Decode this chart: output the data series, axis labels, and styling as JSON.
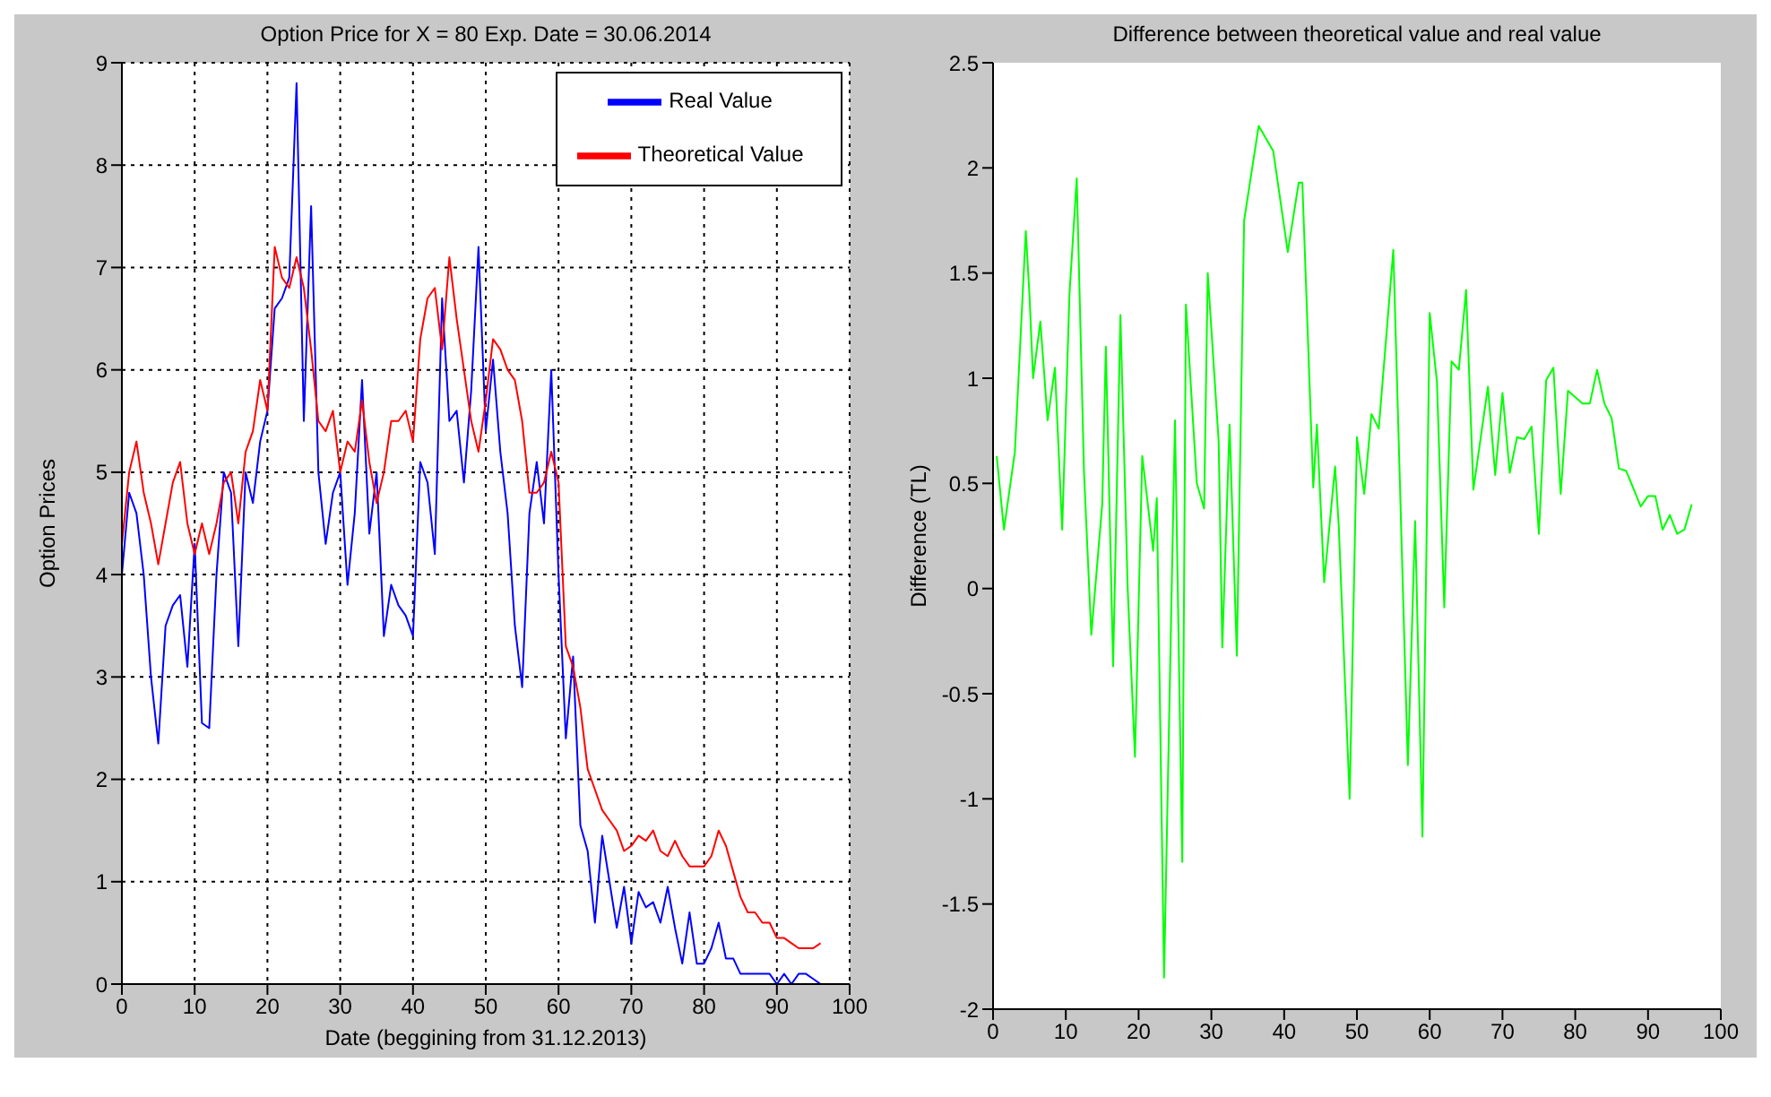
{
  "chart_data": [
    {
      "type": "line",
      "title": "Option Price for X = 80 Exp. Date = 30.06.2014",
      "xlabel": "Date (beggining from 31.12.2013)",
      "ylabel": "Option Prices",
      "x": [
        0,
        1,
        2,
        3,
        4,
        5,
        6,
        7,
        8,
        9,
        10,
        11,
        12,
        13,
        14,
        15,
        16,
        17,
        18,
        19,
        20,
        21,
        22,
        23,
        24,
        25,
        26,
        27,
        28,
        29,
        30,
        31,
        32,
        33,
        34,
        35,
        36,
        37,
        38,
        39,
        40,
        41,
        42,
        43,
        44,
        45,
        46,
        47,
        48,
        49,
        50,
        51,
        52,
        53,
        54,
        55,
        56,
        57,
        58,
        59,
        60,
        61,
        62,
        63,
        64,
        65,
        66,
        67,
        68,
        69,
        70,
        71,
        72,
        73,
        74,
        75,
        76,
        77,
        78,
        79,
        80,
        81,
        82,
        83,
        84,
        85,
        86,
        87,
        88,
        89,
        90,
        91,
        92,
        93,
        94,
        95,
        96
      ],
      "series": [
        {
          "name": "Real Value",
          "color": "#0000ff",
          "values": [
            4.0,
            4.8,
            4.6,
            4.0,
            3.0,
            2.35,
            3.5,
            3.7,
            3.8,
            3.1,
            4.3,
            2.55,
            2.5,
            4.0,
            5.0,
            4.8,
            3.3,
            5.0,
            4.7,
            5.3,
            5.6,
            6.6,
            6.7,
            6.9,
            8.8,
            5.5,
            7.6,
            5.0,
            4.3,
            4.8,
            5.0,
            3.9,
            4.6,
            5.9,
            4.4,
            5.0,
            3.4,
            3.9,
            3.7,
            3.6,
            3.4,
            5.1,
            4.9,
            4.2,
            6.7,
            5.5,
            5.6,
            4.9,
            5.8,
            7.2,
            5.4,
            6.1,
            5.2,
            4.6,
            3.5,
            2.9,
            4.6,
            5.1,
            4.5,
            6.0,
            4.0,
            2.4,
            3.2,
            1.55,
            1.3,
            0.6,
            1.45,
            1.0,
            0.55,
            0.95,
            0.4,
            0.9,
            0.75,
            0.8,
            0.6,
            0.95,
            0.55,
            0.2,
            0.7,
            0.2,
            0.2,
            0.35,
            0.6,
            0.25,
            0.25,
            0.1,
            0.1,
            0.1,
            0.1,
            0.1,
            0.0,
            0.1,
            0.0,
            0.1,
            0.1,
            0.05,
            0.0
          ]
        },
        {
          "name": "Theoretical Value",
          "color": "#ff0000",
          "values": [
            4.3,
            5.0,
            5.3,
            4.8,
            4.5,
            4.1,
            4.5,
            4.9,
            5.1,
            4.5,
            4.2,
            4.5,
            4.2,
            4.5,
            4.9,
            5.0,
            4.5,
            5.2,
            5.4,
            5.9,
            5.6,
            7.2,
            6.9,
            6.8,
            7.1,
            6.8,
            6.2,
            5.5,
            5.4,
            5.6,
            5.0,
            5.3,
            5.2,
            5.7,
            5.1,
            4.7,
            5.0,
            5.5,
            5.5,
            5.6,
            5.3,
            6.3,
            6.7,
            6.8,
            6.2,
            7.1,
            6.5,
            6.0,
            5.5,
            5.2,
            5.7,
            6.3,
            6.2,
            6.0,
            5.9,
            5.5,
            4.8,
            4.8,
            4.9,
            5.2,
            4.9,
            3.3,
            3.1,
            2.7,
            2.1,
            1.9,
            1.7,
            1.6,
            1.5,
            1.3,
            1.35,
            1.45,
            1.4,
            1.5,
            1.3,
            1.25,
            1.4,
            1.25,
            1.15,
            1.15,
            1.15,
            1.25,
            1.5,
            1.35,
            1.1,
            0.85,
            0.7,
            0.7,
            0.6,
            0.6,
            0.45,
            0.45,
            0.4,
            0.35,
            0.35,
            0.35,
            0.4
          ]
        }
      ],
      "xlim": [
        0,
        100
      ],
      "xticks": [
        0,
        10,
        20,
        30,
        40,
        50,
        60,
        70,
        80,
        90,
        100
      ],
      "ylim": [
        0,
        9
      ],
      "yticks": [
        0,
        1,
        2,
        3,
        4,
        5,
        6,
        7,
        8,
        9
      ],
      "grid": true,
      "legend": "top right",
      "marker": "none",
      "line_style": "solid"
    },
    {
      "type": "line",
      "title": "Difference between theoretical value and real value",
      "ylabel": "Difference (TL)",
      "x": [
        0.5,
        1.5,
        3,
        3.5,
        4.5,
        5,
        5.5,
        6.5,
        7.5,
        8.5,
        9.5,
        10.5,
        11.5,
        12.5,
        13.5,
        15,
        15.5,
        16.5,
        17.5,
        18.5,
        19.5,
        20.5,
        22,
        22.5,
        23.5,
        25,
        26,
        26.5,
        28,
        29,
        29.5,
        31,
        31.5,
        32.5,
        33.5,
        34.5,
        36.5,
        38.5,
        40.5,
        42,
        42.5,
        44,
        44.5,
        45.5,
        47,
        47.5,
        49,
        50,
        51,
        52,
        53,
        55,
        57,
        58,
        59,
        60,
        61,
        62,
        63,
        64,
        65,
        66,
        68,
        69,
        70,
        71,
        72,
        73,
        74,
        75,
        76,
        77,
        78,
        79,
        81,
        82,
        83,
        84,
        85,
        86,
        87,
        89,
        90,
        91,
        92,
        93,
        94,
        95,
        96
      ],
      "series": [
        {
          "color": "#00ff00",
          "values": [
            0.63,
            0.28,
            0.65,
            1.0,
            1.7,
            1.4,
            1.0,
            1.27,
            0.8,
            1.05,
            0.28,
            1.4,
            1.95,
            0.55,
            -0.22,
            0.4,
            1.15,
            -0.37,
            1.3,
            0.0,
            -0.8,
            0.63,
            0.18,
            0.43,
            -1.85,
            0.8,
            -1.3,
            1.35,
            0.5,
            0.38,
            1.5,
            0.7,
            -0.28,
            0.78,
            -0.32,
            1.75,
            2.2,
            2.08,
            1.6,
            1.93,
            1.93,
            0.48,
            0.78,
            0.03,
            0.58,
            0.3,
            -1.0,
            0.72,
            0.45,
            0.83,
            0.76,
            1.61,
            -0.84,
            0.32,
            -1.18,
            1.31,
            0.98,
            -0.09,
            1.08,
            1.04,
            1.42,
            0.47,
            0.96,
            0.54,
            0.93,
            0.55,
            0.72,
            0.71,
            0.77,
            0.26,
            0.99,
            1.05,
            0.45,
            0.94,
            0.88,
            0.88,
            1.04,
            0.88,
            0.81,
            0.57,
            0.56,
            0.39,
            0.44,
            0.44,
            0.28,
            0.35,
            0.26,
            0.28,
            0.4
          ]
        }
      ],
      "xlim": [
        0,
        100
      ],
      "xticks": [
        0,
        10,
        20,
        30,
        40,
        50,
        60,
        70,
        80,
        90,
        100
      ],
      "ylim": [
        -2,
        2.5
      ],
      "yticks": [
        -2,
        -1.5,
        -1,
        -0.5,
        0,
        0.5,
        1,
        1.5,
        2,
        2.5
      ],
      "grid": false,
      "marker": "none",
      "line_style": "solid"
    }
  ]
}
